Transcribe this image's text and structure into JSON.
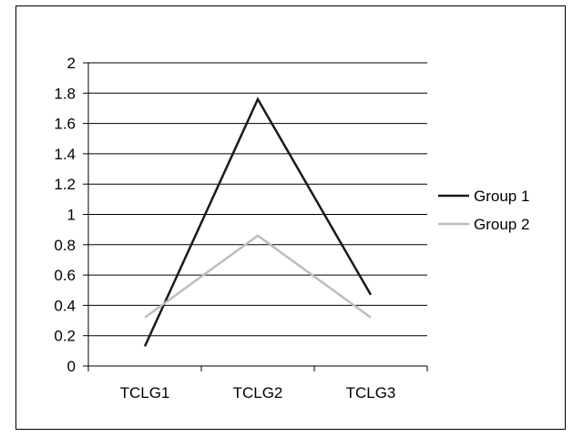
{
  "chart_data": {
    "type": "line",
    "categories": [
      "TCLG1",
      "TCLG2",
      "TCLG3"
    ],
    "series": [
      {
        "name": "Group 1",
        "values": [
          0.13,
          1.76,
          0.47
        ],
        "color": "#1a1a1a"
      },
      {
        "name": "Group 2",
        "values": [
          0.32,
          0.86,
          0.32
        ],
        "color": "#bdbdbd"
      }
    ],
    "title": "",
    "xlabel": "",
    "ylabel": "",
    "ylim": [
      0,
      2
    ],
    "yticks": [
      "0",
      "0.2",
      "0.4",
      "0.6",
      "0.8",
      "1",
      "1.2",
      "1.4",
      "1.6",
      "1.8",
      "2"
    ],
    "grid": true,
    "legend": "right"
  }
}
